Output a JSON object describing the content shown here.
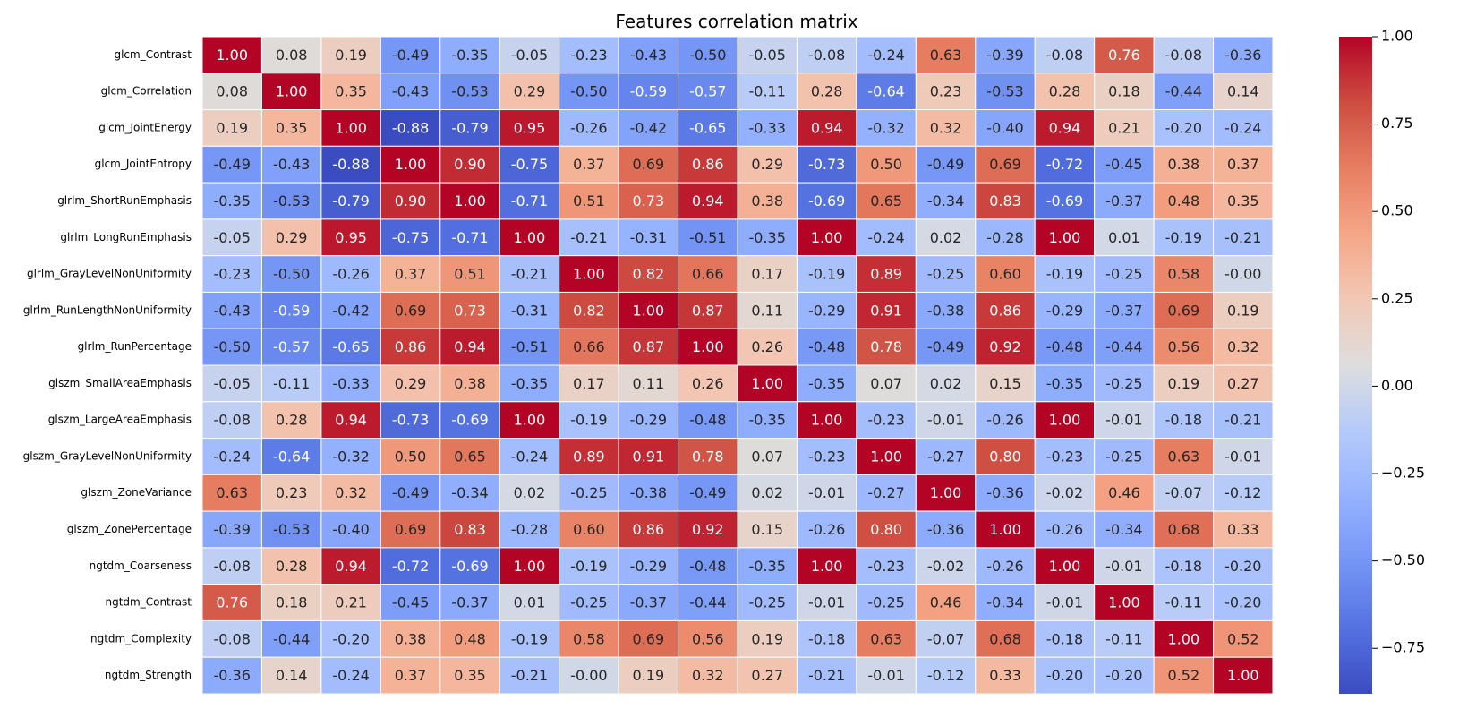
{
  "chart_data": {
    "type": "heatmap",
    "title": "Features correlation matrix",
    "labels": [
      "glcm_Contrast",
      "glcm_Correlation",
      "glcm_JointEnergy",
      "glcm_JointEntropy",
      "glrlm_ShortRunEmphasis",
      "glrlm_LongRunEmphasis",
      "glrlm_GrayLevelNonUniformity",
      "glrlm_RunLengthNonUniformity",
      "glrlm_RunPercentage",
      "glszm_SmallAreaEmphasis",
      "glszm_LargeAreaEmphasis",
      "glszm_GrayLevelNonUniformity",
      "glszm_ZoneVariance",
      "glszm_ZonePercentage",
      "ngtdm_Coarseness",
      "ngtdm_Contrast",
      "ngtdm_Complexity",
      "ngtdm_Strength"
    ],
    "cell_text": [
      [
        "1.00",
        "0.08",
        "0.19",
        "-0.49",
        "-0.35",
        "-0.05",
        "-0.23",
        "-0.43",
        "-0.50",
        "-0.05",
        "-0.08",
        "-0.24",
        "0.63",
        "-0.39",
        "-0.08",
        "0.76",
        "-0.08",
        "-0.36"
      ],
      [
        "0.08",
        "1.00",
        "0.35",
        "-0.43",
        "-0.53",
        "0.29",
        "-0.50",
        "-0.59",
        "-0.57",
        "-0.11",
        "0.28",
        "-0.64",
        "0.23",
        "-0.53",
        "0.28",
        "0.18",
        "-0.44",
        "0.14"
      ],
      [
        "0.19",
        "0.35",
        "1.00",
        "-0.88",
        "-0.79",
        "0.95",
        "-0.26",
        "-0.42",
        "-0.65",
        "-0.33",
        "0.94",
        "-0.32",
        "0.32",
        "-0.40",
        "0.94",
        "0.21",
        "-0.20",
        "-0.24"
      ],
      [
        "-0.49",
        "-0.43",
        "-0.88",
        "1.00",
        "0.90",
        "-0.75",
        "0.37",
        "0.69",
        "0.86",
        "0.29",
        "-0.73",
        "0.50",
        "-0.49",
        "0.69",
        "-0.72",
        "-0.45",
        "0.38",
        "0.37"
      ],
      [
        "-0.35",
        "-0.53",
        "-0.79",
        "0.90",
        "1.00",
        "-0.71",
        "0.51",
        "0.73",
        "0.94",
        "0.38",
        "-0.69",
        "0.65",
        "-0.34",
        "0.83",
        "-0.69",
        "-0.37",
        "0.48",
        "0.35"
      ],
      [
        "-0.05",
        "0.29",
        "0.95",
        "-0.75",
        "-0.71",
        "1.00",
        "-0.21",
        "-0.31",
        "-0.51",
        "-0.35",
        "1.00",
        "-0.24",
        "0.02",
        "-0.28",
        "1.00",
        "0.01",
        "-0.19",
        "-0.21"
      ],
      [
        "-0.23",
        "-0.50",
        "-0.26",
        "0.37",
        "0.51",
        "-0.21",
        "1.00",
        "0.82",
        "0.66",
        "0.17",
        "-0.19",
        "0.89",
        "-0.25",
        "0.60",
        "-0.19",
        "-0.25",
        "0.58",
        "-0.00"
      ],
      [
        "-0.43",
        "-0.59",
        "-0.42",
        "0.69",
        "0.73",
        "-0.31",
        "0.82",
        "1.00",
        "0.87",
        "0.11",
        "-0.29",
        "0.91",
        "-0.38",
        "0.86",
        "-0.29",
        "-0.37",
        "0.69",
        "0.19"
      ],
      [
        "-0.50",
        "-0.57",
        "-0.65",
        "0.86",
        "0.94",
        "-0.51",
        "0.66",
        "0.87",
        "1.00",
        "0.26",
        "-0.48",
        "0.78",
        "-0.49",
        "0.92",
        "-0.48",
        "-0.44",
        "0.56",
        "0.32"
      ],
      [
        "-0.05",
        "-0.11",
        "-0.33",
        "0.29",
        "0.38",
        "-0.35",
        "0.17",
        "0.11",
        "0.26",
        "1.00",
        "-0.35",
        "0.07",
        "0.02",
        "0.15",
        "-0.35",
        "-0.25",
        "0.19",
        "0.27"
      ],
      [
        "-0.08",
        "0.28",
        "0.94",
        "-0.73",
        "-0.69",
        "1.00",
        "-0.19",
        "-0.29",
        "-0.48",
        "-0.35",
        "1.00",
        "-0.23",
        "-0.01",
        "-0.26",
        "1.00",
        "-0.01",
        "-0.18",
        "-0.21"
      ],
      [
        "-0.24",
        "-0.64",
        "-0.32",
        "0.50",
        "0.65",
        "-0.24",
        "0.89",
        "0.91",
        "0.78",
        "0.07",
        "-0.23",
        "1.00",
        "-0.27",
        "0.80",
        "-0.23",
        "-0.25",
        "0.63",
        "-0.01"
      ],
      [
        "0.63",
        "0.23",
        "0.32",
        "-0.49",
        "-0.34",
        "0.02",
        "-0.25",
        "-0.38",
        "-0.49",
        "0.02",
        "-0.01",
        "-0.27",
        "1.00",
        "-0.36",
        "-0.02",
        "0.46",
        "-0.07",
        "-0.12"
      ],
      [
        "-0.39",
        "-0.53",
        "-0.40",
        "0.69",
        "0.83",
        "-0.28",
        "0.60",
        "0.86",
        "0.92",
        "0.15",
        "-0.26",
        "0.80",
        "-0.36",
        "1.00",
        "-0.26",
        "-0.34",
        "0.68",
        "0.33"
      ],
      [
        "-0.08",
        "0.28",
        "0.94",
        "-0.72",
        "-0.69",
        "1.00",
        "-0.19",
        "-0.29",
        "-0.48",
        "-0.35",
        "1.00",
        "-0.23",
        "-0.02",
        "-0.26",
        "1.00",
        "-0.01",
        "-0.18",
        "-0.20"
      ],
      [
        "0.76",
        "0.18",
        "0.21",
        "-0.45",
        "-0.37",
        "0.01",
        "-0.25",
        "-0.37",
        "-0.44",
        "-0.25",
        "-0.01",
        "-0.25",
        "0.46",
        "-0.34",
        "-0.01",
        "1.00",
        "-0.11",
        "-0.20"
      ],
      [
        "-0.08",
        "-0.44",
        "-0.20",
        "0.38",
        "0.48",
        "-0.19",
        "0.58",
        "0.69",
        "0.56",
        "0.19",
        "-0.18",
        "0.63",
        "-0.07",
        "0.68",
        "-0.18",
        "-0.11",
        "1.00",
        "0.52"
      ],
      [
        "-0.36",
        "0.14",
        "-0.24",
        "0.37",
        "0.35",
        "-0.21",
        "-0.00",
        "0.19",
        "0.32",
        "0.27",
        "-0.21",
        "-0.01",
        "-0.12",
        "0.33",
        "-0.20",
        "-0.20",
        "0.52",
        "1.00"
      ]
    ],
    "colormap": "coolwarm",
    "vmin": -0.88,
    "vmax": 1.0,
    "colorbar_ticks": [
      "1.00",
      "0.75",
      "0.50",
      "0.25",
      "0.00",
      "−0.25",
      "−0.50",
      "−0.75"
    ],
    "colorbar_tick_values": [
      1.0,
      0.75,
      0.5,
      0.25,
      0.0,
      -0.25,
      -0.5,
      -0.75
    ],
    "cell_border_color": "#ffffff",
    "legend_position": "right"
  }
}
